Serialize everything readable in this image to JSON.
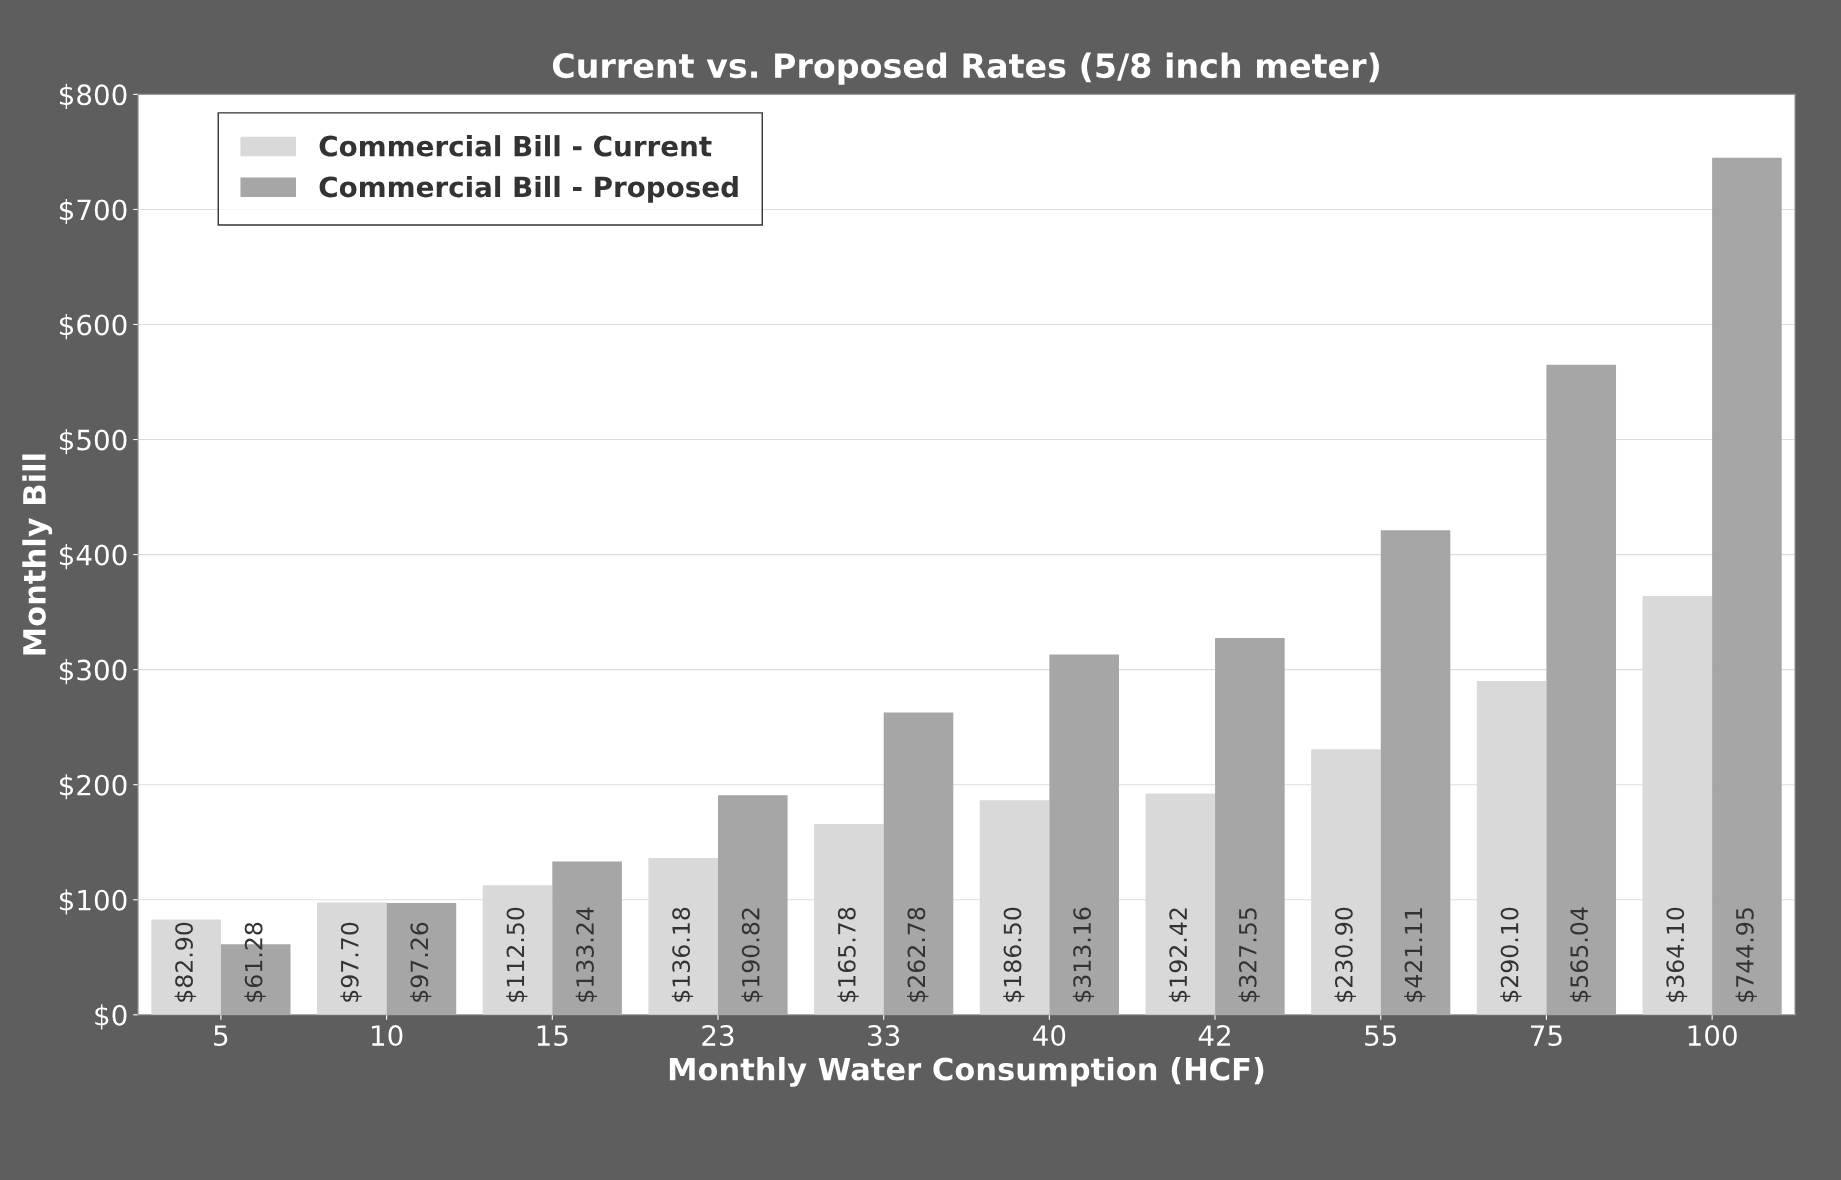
{
  "chart_data": {
    "type": "bar",
    "title": "Current vs. Proposed Rates (5/8 inch meter)",
    "xlabel": "Monthly Water Consumption (HCF)",
    "ylabel": "Monthly Bill",
    "categories": [
      "5",
      "10",
      "15",
      "23",
      "33",
      "40",
      "42",
      "55",
      "75",
      "100"
    ],
    "series": [
      {
        "name": "Commercial Bill - Current",
        "color": "#d9d9d9",
        "values": [
          82.9,
          97.7,
          112.5,
          136.18,
          165.78,
          186.5,
          192.42,
          230.9,
          290.1,
          364.1
        ],
        "value_labels": [
          "$82.90",
          "$97.70",
          "$112.50",
          "$136.18",
          "$165.78",
          "$186.50",
          "$192.42",
          "$230.90",
          "$290.10",
          "$364.10"
        ]
      },
      {
        "name": "Commercial Bill - Proposed",
        "color": "#a6a6a6",
        "values": [
          61.28,
          97.26,
          133.24,
          190.82,
          262.78,
          313.16,
          327.55,
          421.11,
          565.04,
          744.95
        ],
        "value_labels": [
          "$61.28",
          "$97.26",
          "$133.24",
          "$190.82",
          "$262.78",
          "$313.16",
          "$327.55",
          "$421.11",
          "$565.04",
          "$744.95"
        ]
      }
    ],
    "ylim": [
      0,
      800
    ],
    "yticks": [
      {
        "value": 0,
        "label": "$0"
      },
      {
        "value": 100,
        "label": "$100"
      },
      {
        "value": 200,
        "label": "$200"
      },
      {
        "value": 300,
        "label": "$300"
      },
      {
        "value": 400,
        "label": "$400"
      },
      {
        "value": 500,
        "label": "$500"
      },
      {
        "value": 600,
        "label": "$600"
      },
      {
        "value": 700,
        "label": "$700"
      },
      {
        "value": 800,
        "label": "$800"
      }
    ],
    "grid": "y",
    "legend": "top left"
  }
}
